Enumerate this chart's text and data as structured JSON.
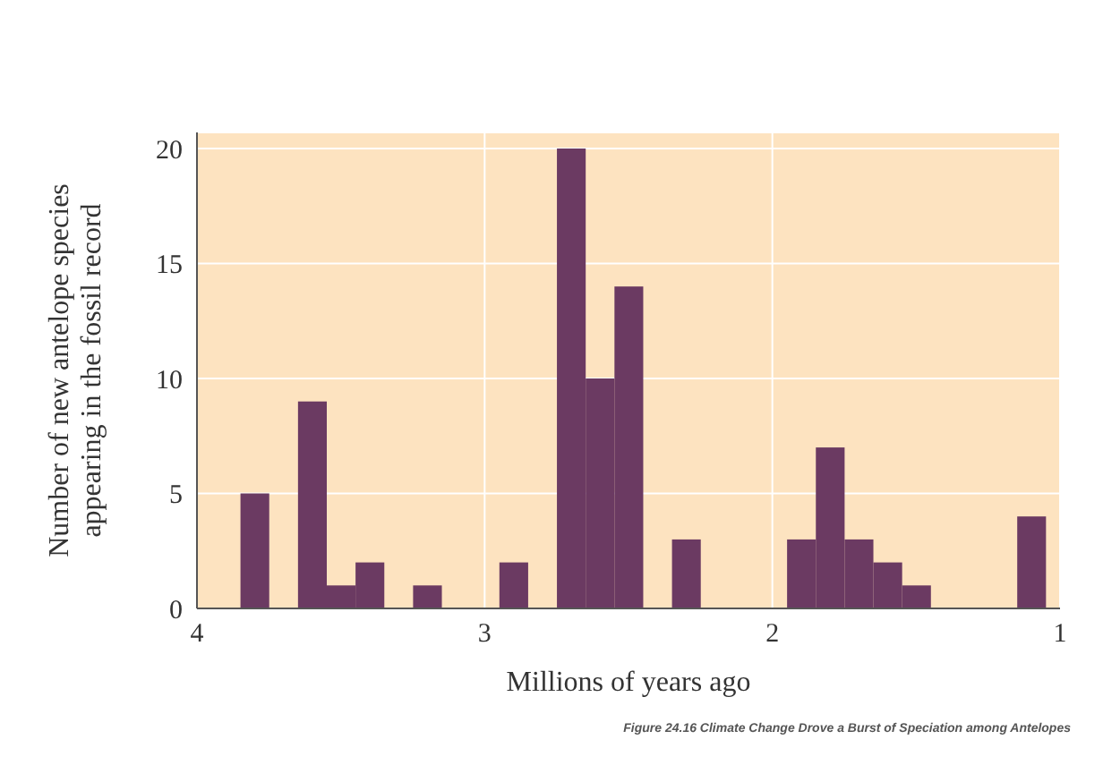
{
  "chart_data": {
    "type": "histogram",
    "xlabel": "Millions of years ago",
    "ylabel": "Number of new antelope species\nappearing in the fossil record",
    "bins": [
      1.05,
      1.15,
      1.25,
      1.35,
      1.45,
      1.55,
      1.65,
      1.75,
      1.85,
      1.95,
      2.05,
      2.15,
      2.25,
      2.35,
      2.45,
      2.55,
      2.65,
      2.75,
      2.85,
      2.95,
      3.05,
      3.15,
      3.25,
      3.35,
      3.45,
      3.55,
      3.65,
      3.75,
      3.85
    ],
    "values": [
      4,
      0,
      0,
      0,
      1,
      2,
      3,
      7,
      3,
      0,
      0,
      0,
      3,
      0,
      14,
      10,
      20,
      0,
      2,
      0,
      0,
      1,
      0,
      2,
      1,
      9,
      0,
      5
    ],
    "color": "#6b3a62",
    "xlim": [
      4,
      1
    ],
    "xticks": [
      4,
      3,
      2,
      1
    ],
    "ylim": [
      0,
      20.7
    ],
    "yticks": [
      0,
      5,
      10,
      15,
      20
    ],
    "grid": true,
    "annotations": [
      "Figure 24.16 Climate Change Drove a Burst of Speciation among Antelopes"
    ]
  }
}
